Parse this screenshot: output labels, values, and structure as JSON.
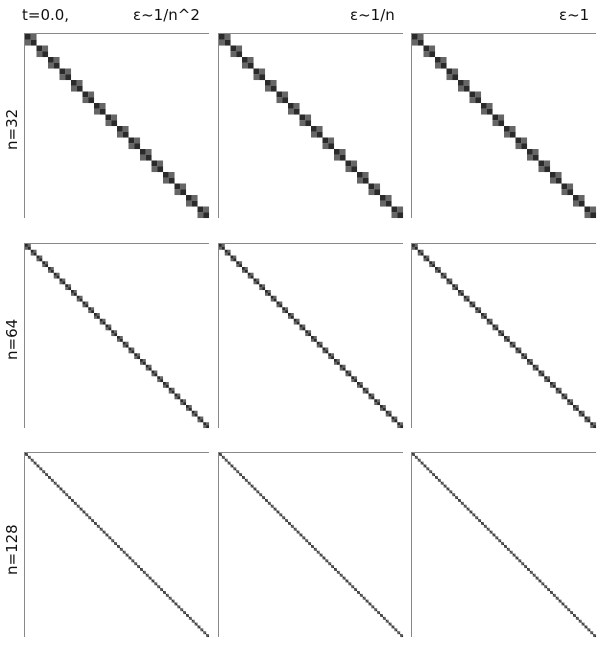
{
  "chart_data": {
    "type": "heatmap",
    "title_time": "t=0.0,",
    "columns": [
      {
        "label": "ε~1/n^2"
      },
      {
        "label": "ε~1/n"
      },
      {
        "label": "ε~1"
      }
    ],
    "rows": [
      {
        "label": "n=32",
        "n": 32,
        "block": 2
      },
      {
        "label": "n=64",
        "n": 64,
        "block": 2
      },
      {
        "label": "n=128",
        "n": 128,
        "block": 2
      }
    ],
    "cell_colors": [
      "#666666",
      "#2a2a2a"
    ],
    "grid": false
  }
}
